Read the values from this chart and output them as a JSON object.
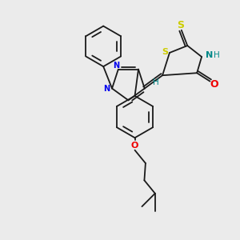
{
  "background_color": "#ebebeb",
  "bond_color": "#1a1a1a",
  "atom_colors": {
    "N": "#0000ee",
    "O": "#ee0000",
    "S_thioxo": "#cccc00",
    "S_ring": "#cccc00",
    "NH": "#008888",
    "H": "#008888",
    "C": "#1a1a1a"
  }
}
